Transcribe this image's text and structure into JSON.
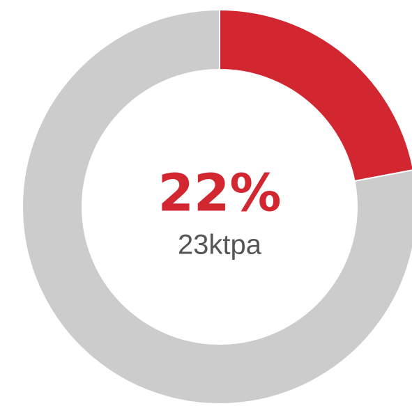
{
  "chart_data": {
    "type": "pie",
    "donut": true,
    "values": [
      22,
      78
    ],
    "value_labels": [
      "22%",
      null
    ],
    "colors": [
      "#d22630",
      "#cccccc"
    ],
    "subtitle": "23ktpa"
  }
}
